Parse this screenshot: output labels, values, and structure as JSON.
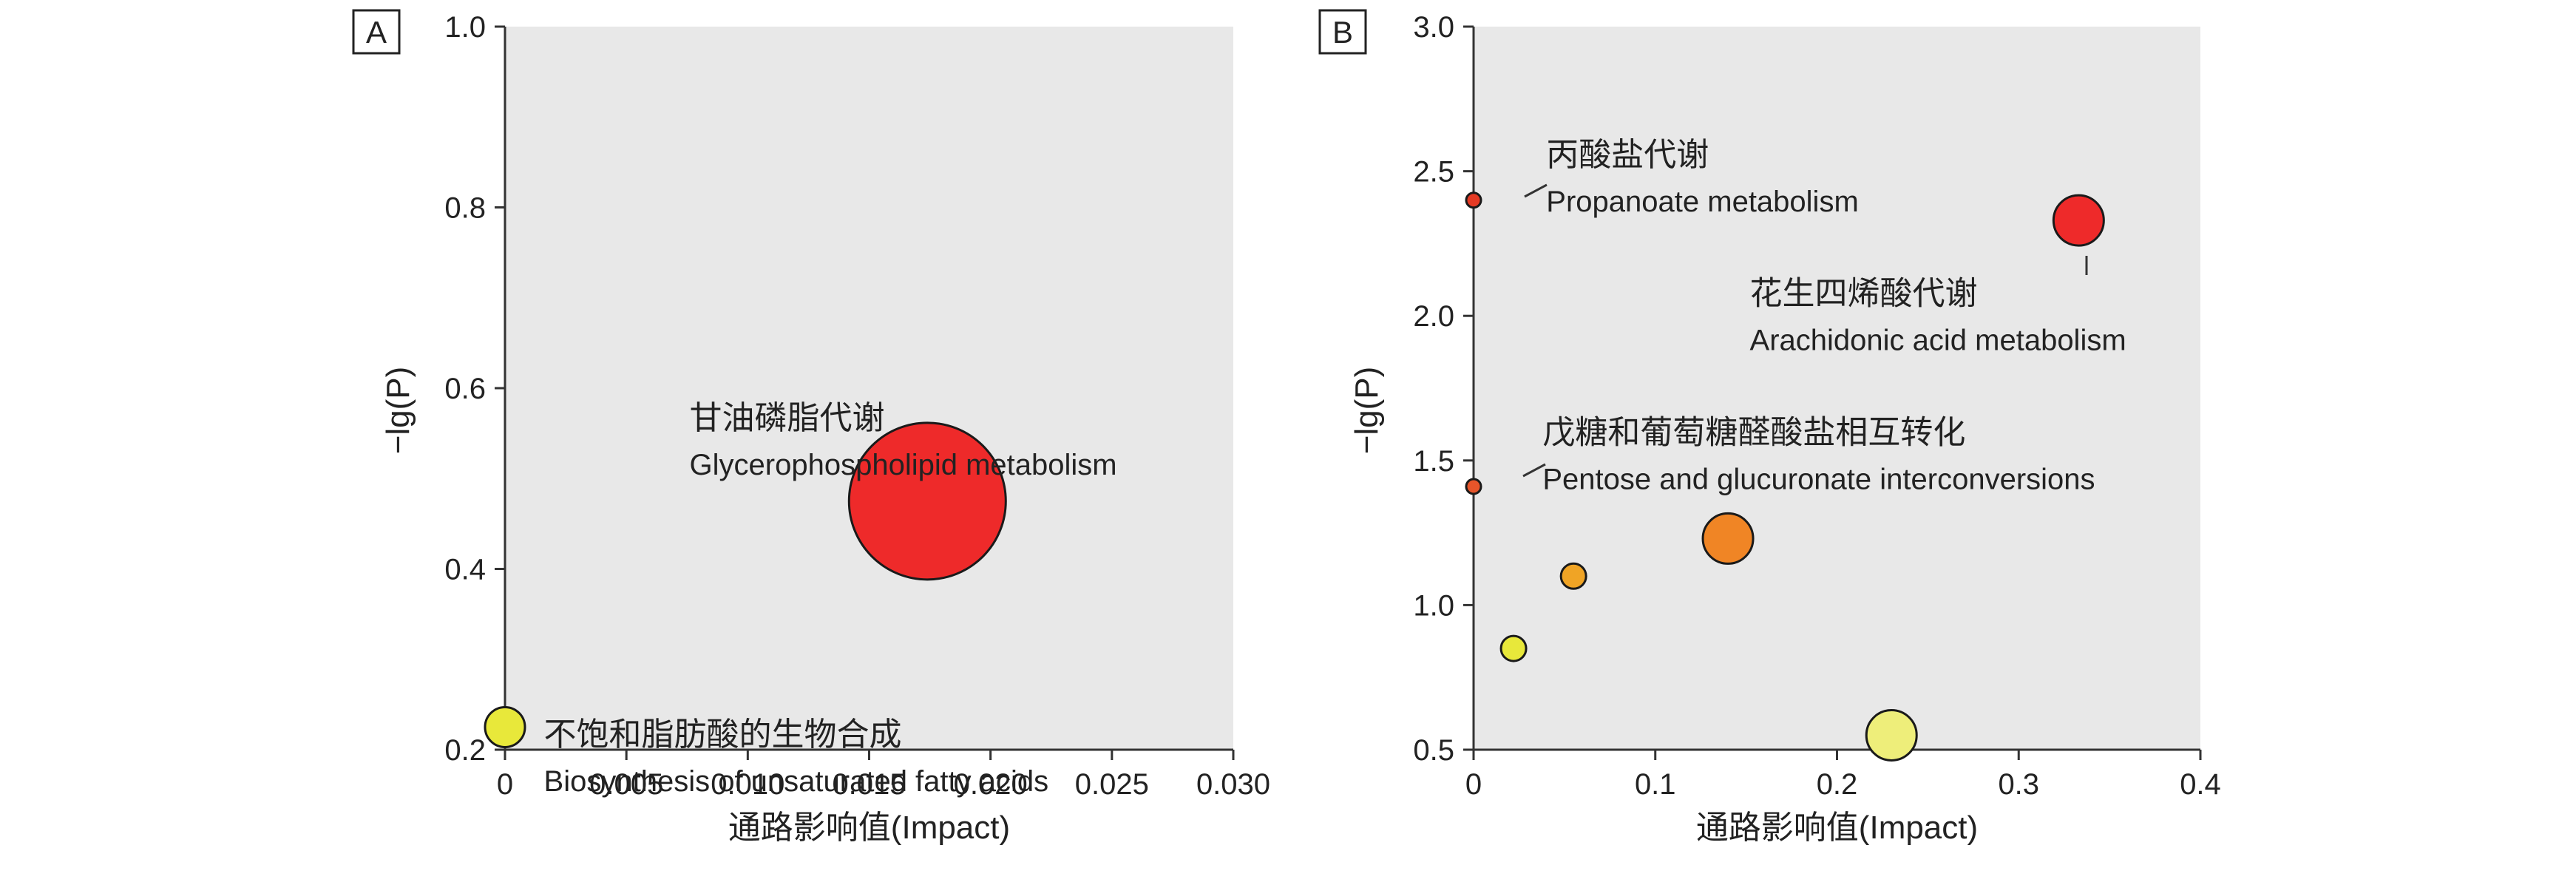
{
  "chart_data": [
    {
      "panel": "A",
      "type": "scatter",
      "xlabel": "通路影响值(Impact)",
      "ylabel": "−lg(P)",
      "xlim": [
        0,
        0.03
      ],
      "ylim": [
        0.2,
        1.0
      ],
      "xticks": [
        0,
        0.005,
        0.01,
        0.015,
        0.02,
        0.025,
        0.03
      ],
      "xtick_labels": [
        "0",
        "0.005",
        "0.010",
        "0.015",
        "0.020",
        "0.025",
        "0.030"
      ],
      "yticks": [
        0.2,
        0.4,
        0.6,
        0.8,
        1.0
      ],
      "ytick_labels": [
        "0.2",
        "0.4",
        "0.6",
        "0.8",
        "1.0"
      ],
      "grid": false,
      "plot_background": "#e8e8e8",
      "points": [
        {
          "x": 0.0,
          "y": 0.225,
          "size": "small",
          "color": "#e8e83a"
        },
        {
          "x": 0.0174,
          "y": 0.475,
          "size": "large",
          "color": "#ee2a2a"
        }
      ],
      "annotations": [
        {
          "cn": "甘油磷脂代谢",
          "en": "Glycerophospholipid metabolism",
          "x": 0.0076,
          "y": 0.555
        },
        {
          "cn": "不饱和脂肪酸的生物合成",
          "en": "Biosynthesis of unsaturated fatty acids",
          "x": 0.0016,
          "y": 0.205
        }
      ]
    },
    {
      "panel": "B",
      "type": "scatter",
      "xlabel": "通路影响值(Impact)",
      "ylabel": "−lg(P)",
      "xlim": [
        0,
        0.4
      ],
      "ylim": [
        0.5,
        3.0
      ],
      "xticks": [
        0,
        0.1,
        0.2,
        0.3,
        0.4
      ],
      "xtick_labels": [
        "0",
        "0.1",
        "0.2",
        "0.3",
        "0.4"
      ],
      "yticks": [
        0.5,
        1.0,
        1.5,
        2.0,
        2.5,
        3.0
      ],
      "ytick_labels": [
        "0.5",
        "1.0",
        "1.5",
        "2.0",
        "2.5",
        "3.0"
      ],
      "grid": false,
      "plot_background": "#e8e8e8",
      "points": [
        {
          "x": 0.0,
          "y": 2.4,
          "size": "tiny",
          "color": "#e53a24"
        },
        {
          "x": 0.0,
          "y": 1.41,
          "size": "tiny",
          "color": "#e6552a"
        },
        {
          "x": 0.022,
          "y": 0.85,
          "size": "small",
          "color": "#e8e83a"
        },
        {
          "x": 0.055,
          "y": 1.1,
          "size": "small",
          "color": "#f0a425"
        },
        {
          "x": 0.14,
          "y": 1.23,
          "size": "medium",
          "color": "#f08525"
        },
        {
          "x": 0.23,
          "y": 0.55,
          "size": "medium",
          "color": "#eeee7a"
        },
        {
          "x": 0.333,
          "y": 2.33,
          "size": "medium",
          "color": "#ee2a2a"
        }
      ],
      "annotations": [
        {
          "cn": "丙酸盐代谢",
          "en": "Propanoate metabolism",
          "x": 0.04,
          "y": 2.52
        },
        {
          "cn": "花生四烯酸代谢",
          "en": "Arachidonic acid metabolism",
          "x": 0.152,
          "y": 2.04
        },
        {
          "cn": "戊糖和葡萄糖醛酸盐相互转化",
          "en": "Pentose and glucuronate interconversions",
          "x": 0.038,
          "y": 1.56
        }
      ]
    }
  ]
}
